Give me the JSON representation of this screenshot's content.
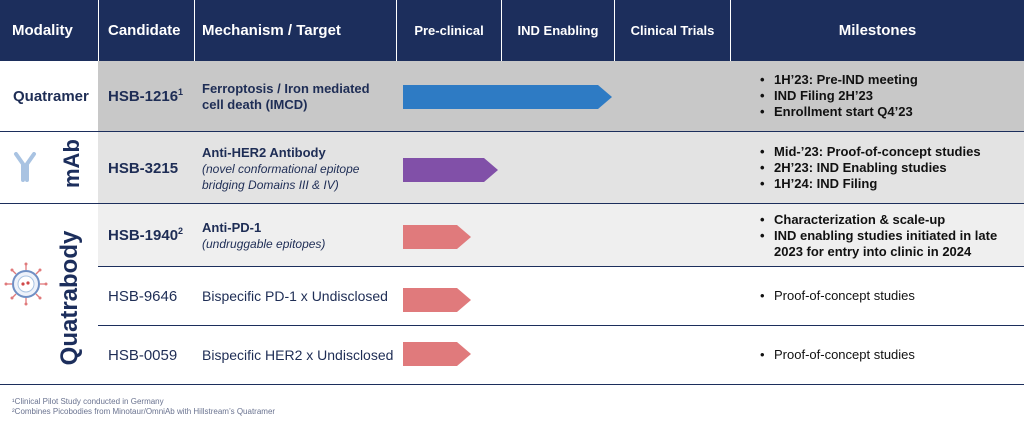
{
  "header": {
    "modality": "Modality",
    "candidate": "Candidate",
    "mechanism": "Mechanism / Target",
    "preclinical": "Pre-clinical",
    "ind_enabling": "IND Enabling",
    "clinical_trials": "Clinical Trials",
    "milestones": "Milestones"
  },
  "modalities": {
    "quatramer": "Quatramer",
    "mab": "mAb",
    "quatrabody": "Quatrabody"
  },
  "rows": [
    {
      "candidate": "HSB-1216",
      "sup": "1",
      "mechanism_title": "Ferroptosis / Iron mediated cell death (IMCD)",
      "mechanism_sub": "",
      "stage_progress": 0.55,
      "arrow_color": "#2e7bc4",
      "milestones": [
        "1H’23: Pre-IND meeting",
        "IND Filing 2H’23",
        "Enrollment start Q4’23"
      ]
    },
    {
      "candidate": "HSB-3215",
      "sup": "",
      "mechanism_title": "Anti-HER2 Antibody",
      "mechanism_sub": "(novel conformational epitope bridging Domains III & IV)",
      "stage_progress": 0.25,
      "arrow_color": "#8150a8",
      "milestones": [
        "Mid-’23: Proof-of-concept studies",
        "2H’23: IND Enabling studies",
        "1H’24: IND Filing"
      ]
    },
    {
      "candidate": "HSB-1940",
      "sup": "2",
      "mechanism_title": "Anti-PD-1",
      "mechanism_sub": "(undruggable epitopes)",
      "stage_progress": 0.18,
      "arrow_color": "#e07a7c",
      "milestones": [
        "Characterization & scale-up",
        "IND enabling studies initiated in late 2023 for entry into clinic in 2024"
      ]
    },
    {
      "candidate": "HSB-9646",
      "sup": "",
      "mechanism_title": "Bispecific PD-1 x Undisclosed",
      "mechanism_sub": "",
      "stage_progress": 0.18,
      "arrow_color": "#e07a7c",
      "milestones": [
        "Proof-of-concept studies"
      ]
    },
    {
      "candidate": "HSB-0059",
      "sup": "",
      "mechanism_title": "Bispecific HER2 x Undisclosed",
      "mechanism_sub": "",
      "stage_progress": 0.18,
      "arrow_color": "#e07a7c",
      "milestones": [
        "Proof-of-concept studies"
      ]
    }
  ],
  "footnotes": {
    "one": "¹Clinical Pilot Study conducted in Germany",
    "two": "²Combines Picobodies from Minotaur/OmniAb with Hillstream’s Quatramer"
  },
  "colors": {
    "navy": "#1c2e5c",
    "row1_bg": "#c8c8c8",
    "row2_bg": "#e3e3e3",
    "row3_bg": "#efefef"
  }
}
